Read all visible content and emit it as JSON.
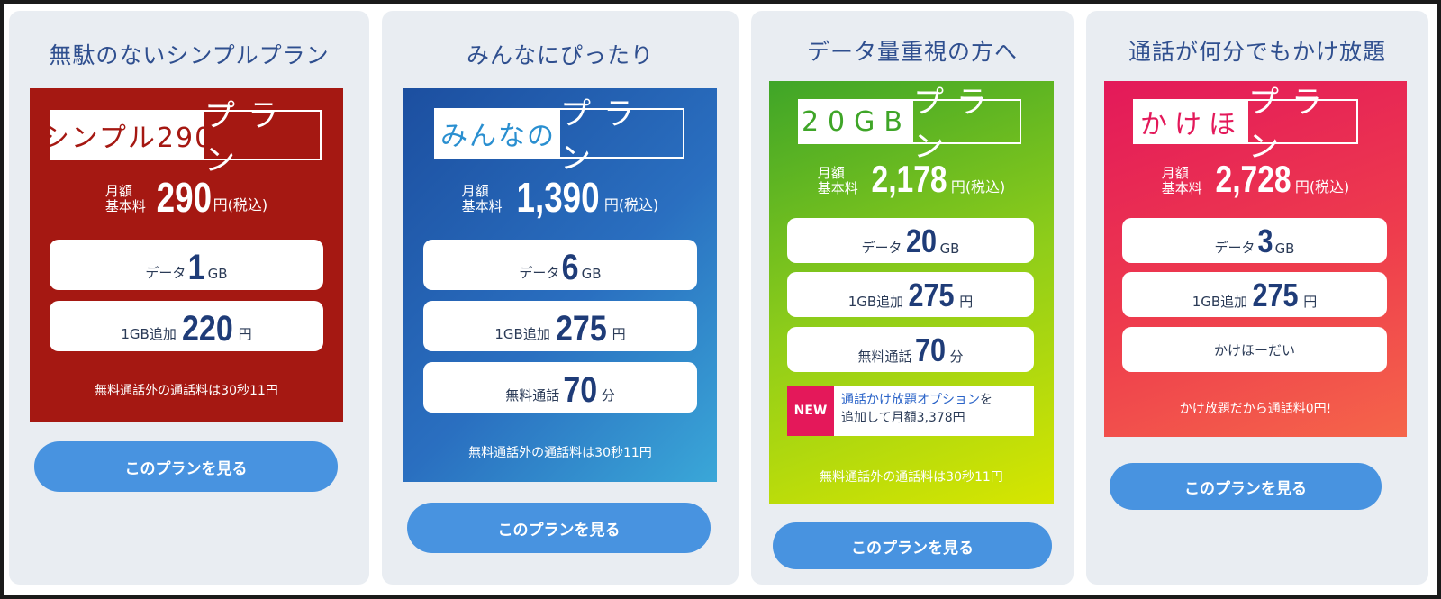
{
  "plans": [
    {
      "title": "無駄のないシンプルプラン",
      "logo_left": "シンプル290",
      "logo_right": "プラン",
      "price_label_1": "月額",
      "price_label_2": "基本料",
      "price": "290",
      "price_unit": "円(税込)",
      "rows": [
        {
          "pre": "データ",
          "big": "1",
          "post": "GB"
        },
        {
          "pre": "1GB追加",
          "big": "220",
          "post": "円"
        }
      ],
      "note": "無料通話外の通話料は30秒11円",
      "button": "このプランを見る",
      "color": "#a51812"
    },
    {
      "title": "みんなにぴったり",
      "logo_left": "みんなの",
      "logo_right": "プラン",
      "price_label_1": "月額",
      "price_label_2": "基本料",
      "price": "1,390",
      "price_unit": "円(税込)",
      "rows": [
        {
          "pre": "データ",
          "big": "6",
          "post": "GB"
        },
        {
          "pre": "1GB追加",
          "big": "275",
          "post": "円"
        },
        {
          "pre": "無料通話",
          "big": "70",
          "post": "分"
        }
      ],
      "note": "無料通話外の通話料は30秒11円",
      "button": "このプランを見る",
      "color": "#1c4fa0"
    },
    {
      "title": "データ量重視の方へ",
      "logo_left": "20GB",
      "logo_right": "プラン",
      "price_label_1": "月額",
      "price_label_2": "基本料",
      "price": "2,178",
      "price_unit": "円(税込)",
      "rows": [
        {
          "pre": "データ",
          "big": "20",
          "post": "GB"
        },
        {
          "pre": "1GB追加",
          "big": "275",
          "post": "円"
        },
        {
          "pre": "無料通話",
          "big": "70",
          "post": "分"
        }
      ],
      "new_badge": "NEW",
      "new_text_highlight": "通話かけ放題オプション",
      "new_text_rest": "を",
      "new_text_line2": "追加して月額3,378円",
      "note": "無料通話外の通話料は30秒11円",
      "button": "このプランを見る",
      "color": "#3fa528"
    },
    {
      "title": "通話が何分でもかけ放題",
      "logo_left": "かけほ",
      "logo_right": "プラン",
      "price_label_1": "月額",
      "price_label_2": "基本料",
      "price": "2,728",
      "price_unit": "円(税込)",
      "rows": [
        {
          "pre": "データ",
          "big": "3",
          "post": "GB"
        },
        {
          "pre": "1GB追加",
          "big": "275",
          "post": "円"
        }
      ],
      "plain_row": "かけほーだい",
      "note": "かけ放題だから通話料0円!",
      "button": "このプランを見る",
      "color": "#e3195a"
    }
  ]
}
